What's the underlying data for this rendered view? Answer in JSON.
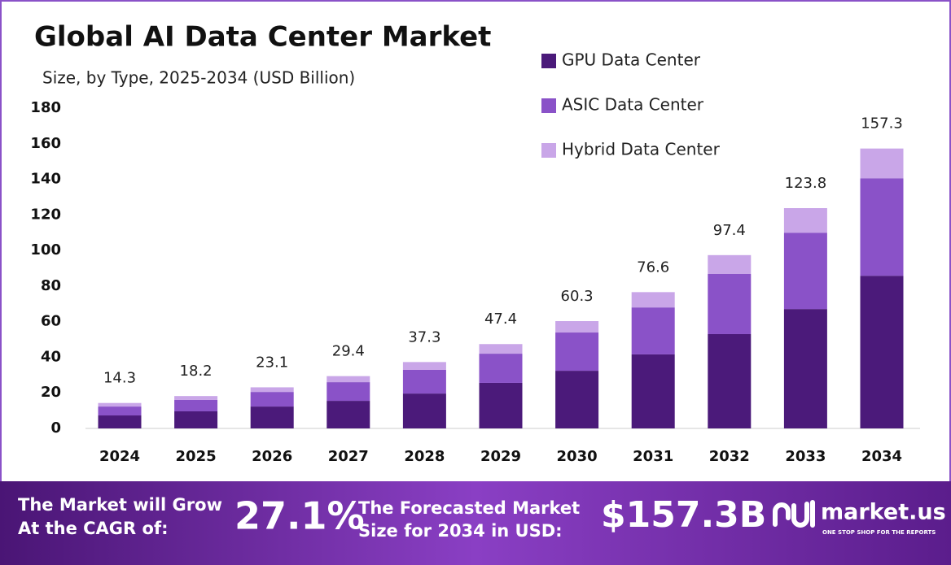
{
  "chart_data": {
    "type": "stacked_bar",
    "title": "Global AI Data Center Market",
    "subtitle": "Size, by Type, 2025-2034 (USD Billion)",
    "categories": [
      "2024",
      "2025",
      "2026",
      "2027",
      "2028",
      "2029",
      "2030",
      "2031",
      "2032",
      "2033",
      "2034"
    ],
    "series": [
      {
        "name": "GPU Data Center",
        "color": "#4b1a7a",
        "values": [
          7.3,
          9.6,
          12.3,
          15.5,
          19.6,
          25.6,
          32.4,
          41.6,
          53.0,
          67.1,
          85.8
        ]
      },
      {
        "name": "ASIC Data Center",
        "color": "#8a52c8",
        "values": [
          5.0,
          6.4,
          8.2,
          10.5,
          13.3,
          16.4,
          21.5,
          26.4,
          33.8,
          42.9,
          54.8
        ]
      },
      {
        "name": "Hybrid Data Center",
        "color": "#c9a6e8",
        "values": [
          2.0,
          2.2,
          2.6,
          3.4,
          4.4,
          5.4,
          6.4,
          8.6,
          10.6,
          13.8,
          16.7
        ]
      }
    ],
    "totals": [
      14.3,
      18.2,
      23.1,
      29.4,
      37.3,
      47.4,
      60.3,
      76.6,
      97.4,
      123.8,
      157.3
    ],
    "ylim": [
      0,
      180
    ],
    "yticks": [
      0,
      20,
      40,
      60,
      80,
      100,
      120,
      140,
      160,
      180
    ],
    "grid": false,
    "legend": "top-right"
  },
  "footer": {
    "cagr_label": [
      "The Market will Grow",
      "At the CAGR of:"
    ],
    "cagr_value": "27.1%",
    "forecast_label": [
      "The Forecasted Market",
      "Size for 2034 in USD:"
    ],
    "forecast_value": "$157.3B",
    "brand": "market.us",
    "tagline": "ONE STOP SHOP FOR THE REPORTS"
  }
}
